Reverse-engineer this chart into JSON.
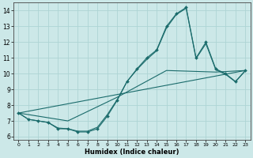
{
  "xlabel": "Humidex (Indice chaleur)",
  "xlim": [
    -0.5,
    23.5
  ],
  "ylim": [
    5.8,
    14.5
  ],
  "xticks": [
    0,
    1,
    2,
    3,
    4,
    5,
    6,
    7,
    8,
    9,
    10,
    11,
    12,
    13,
    14,
    15,
    16,
    17,
    18,
    19,
    20,
    21,
    22,
    23
  ],
  "yticks": [
    6,
    7,
    8,
    9,
    10,
    11,
    12,
    13,
    14
  ],
  "bg_color": "#cce8e8",
  "grid_color": "#aed4d4",
  "line_color": "#1a6b6b",
  "curve_with_markers": {
    "x": [
      0,
      1,
      2,
      3,
      4,
      5,
      6,
      7,
      8,
      9,
      10,
      11,
      12,
      13,
      14,
      15,
      16,
      17,
      18,
      19,
      20,
      21,
      22,
      23
    ],
    "y": [
      7.5,
      7.1,
      7.0,
      6.9,
      6.5,
      6.5,
      6.3,
      6.3,
      6.5,
      7.3,
      8.3,
      9.5,
      10.3,
      11.0,
      11.5,
      13.0,
      13.8,
      14.2,
      11.0,
      12.0,
      10.3,
      10.0,
      9.5,
      10.2
    ]
  },
  "smooth_curve1": {
    "x": [
      0,
      1,
      2,
      3,
      4,
      5,
      6,
      7,
      8,
      9,
      10,
      11,
      12,
      13,
      14,
      15,
      16,
      17,
      18,
      19,
      20,
      21,
      22,
      23
    ],
    "y": [
      7.5,
      7.1,
      7.0,
      6.9,
      6.55,
      6.5,
      6.35,
      6.35,
      6.6,
      7.4,
      8.35,
      9.5,
      10.25,
      10.9,
      11.45,
      12.9,
      13.75,
      14.15,
      10.95,
      11.9,
      10.25,
      9.95,
      9.48,
      10.18
    ]
  },
  "smooth_curve2": {
    "x": [
      0,
      5,
      10,
      15,
      20,
      23
    ],
    "y": [
      7.5,
      7.0,
      8.5,
      10.2,
      10.1,
      10.2
    ]
  },
  "straight_line": {
    "x": [
      0,
      23
    ],
    "y": [
      7.5,
      10.2
    ]
  }
}
